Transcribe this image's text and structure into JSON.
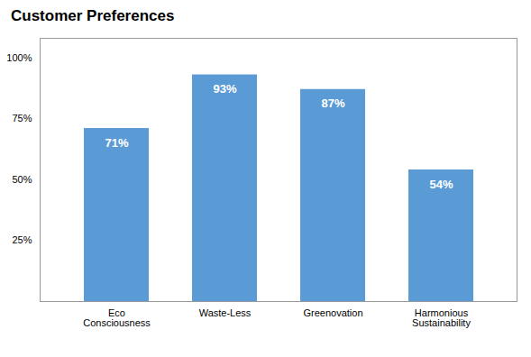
{
  "chart_data": {
    "type": "bar",
    "title": "Customer Preferences",
    "categories": [
      "Eco Consciousness",
      "Waste-Less",
      "Greenovation",
      "Harmonious Sustainability"
    ],
    "values": [
      71,
      93,
      87,
      54
    ],
    "value_labels": [
      "71%",
      "93%",
      "87%",
      "54%"
    ],
    "data_labels": true,
    "color": "#5b9bd5",
    "ylim": [
      0,
      108
    ],
    "yticks": [
      {
        "value": 25,
        "label": "25%"
      },
      {
        "value": 50,
        "label": "50%"
      },
      {
        "value": 75,
        "label": "75%"
      },
      {
        "value": 100,
        "label": "100%"
      }
    ],
    "grid": false
  }
}
